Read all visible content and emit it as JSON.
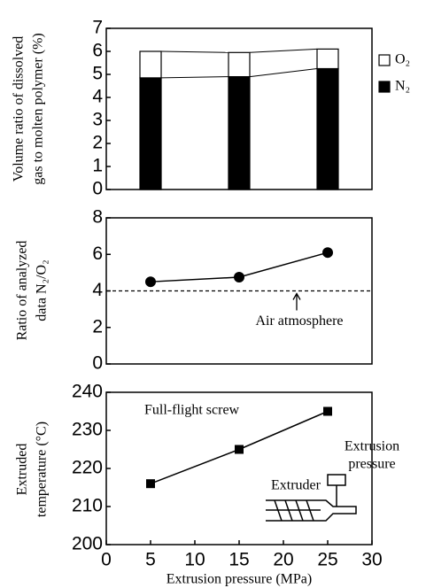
{
  "chart_data": [
    {
      "type": "bar",
      "stacked": true,
      "ylabel": [
        "Volume ratio of dissolved",
        "gas to molten polymer (%)"
      ],
      "x": [
        5,
        15,
        25
      ],
      "xlim": [
        0,
        30
      ],
      "series": [
        {
          "name": "N₂",
          "color": "#000000",
          "values": [
            4.85,
            4.9,
            5.25
          ]
        },
        {
          "name": "O₂",
          "color": "#ffffff",
          "values": [
            1.15,
            1.05,
            0.85
          ]
        }
      ],
      "ylim": [
        0,
        7
      ],
      "yticks": [
        0,
        1,
        2,
        3,
        4,
        5,
        6,
        7
      ],
      "legend": "right"
    },
    {
      "type": "line",
      "marker": "circle",
      "ylabel": [
        "Ratio of analyzed",
        "data N₂/O₂"
      ],
      "x": [
        5,
        15,
        25
      ],
      "values": [
        4.5,
        4.75,
        6.1
      ],
      "color": "#000000",
      "xlim": [
        0,
        30
      ],
      "ylim": [
        0,
        8
      ],
      "yticks": [
        0,
        2,
        4,
        6,
        8
      ],
      "reference_line": {
        "value": 4,
        "label": "Air atmosphere"
      }
    },
    {
      "type": "line",
      "marker": "square",
      "ylabel": [
        "Extruded",
        "temperature (°C)"
      ],
      "xlabel": "Extrusion pressure (MPa)",
      "x": [
        5,
        15,
        25
      ],
      "values": [
        216,
        225,
        235
      ],
      "color": "#000000",
      "xlim": [
        0,
        30
      ],
      "xticks": [
        0,
        5,
        10,
        15,
        20,
        25,
        30
      ],
      "ylim": [
        200,
        240
      ],
      "yticks": [
        200,
        210,
        220,
        230,
        240
      ],
      "annotations": [
        "Full-flight screw",
        "Extruder"
      ],
      "inset_label": [
        "Extrusion",
        "pressure"
      ]
    }
  ]
}
